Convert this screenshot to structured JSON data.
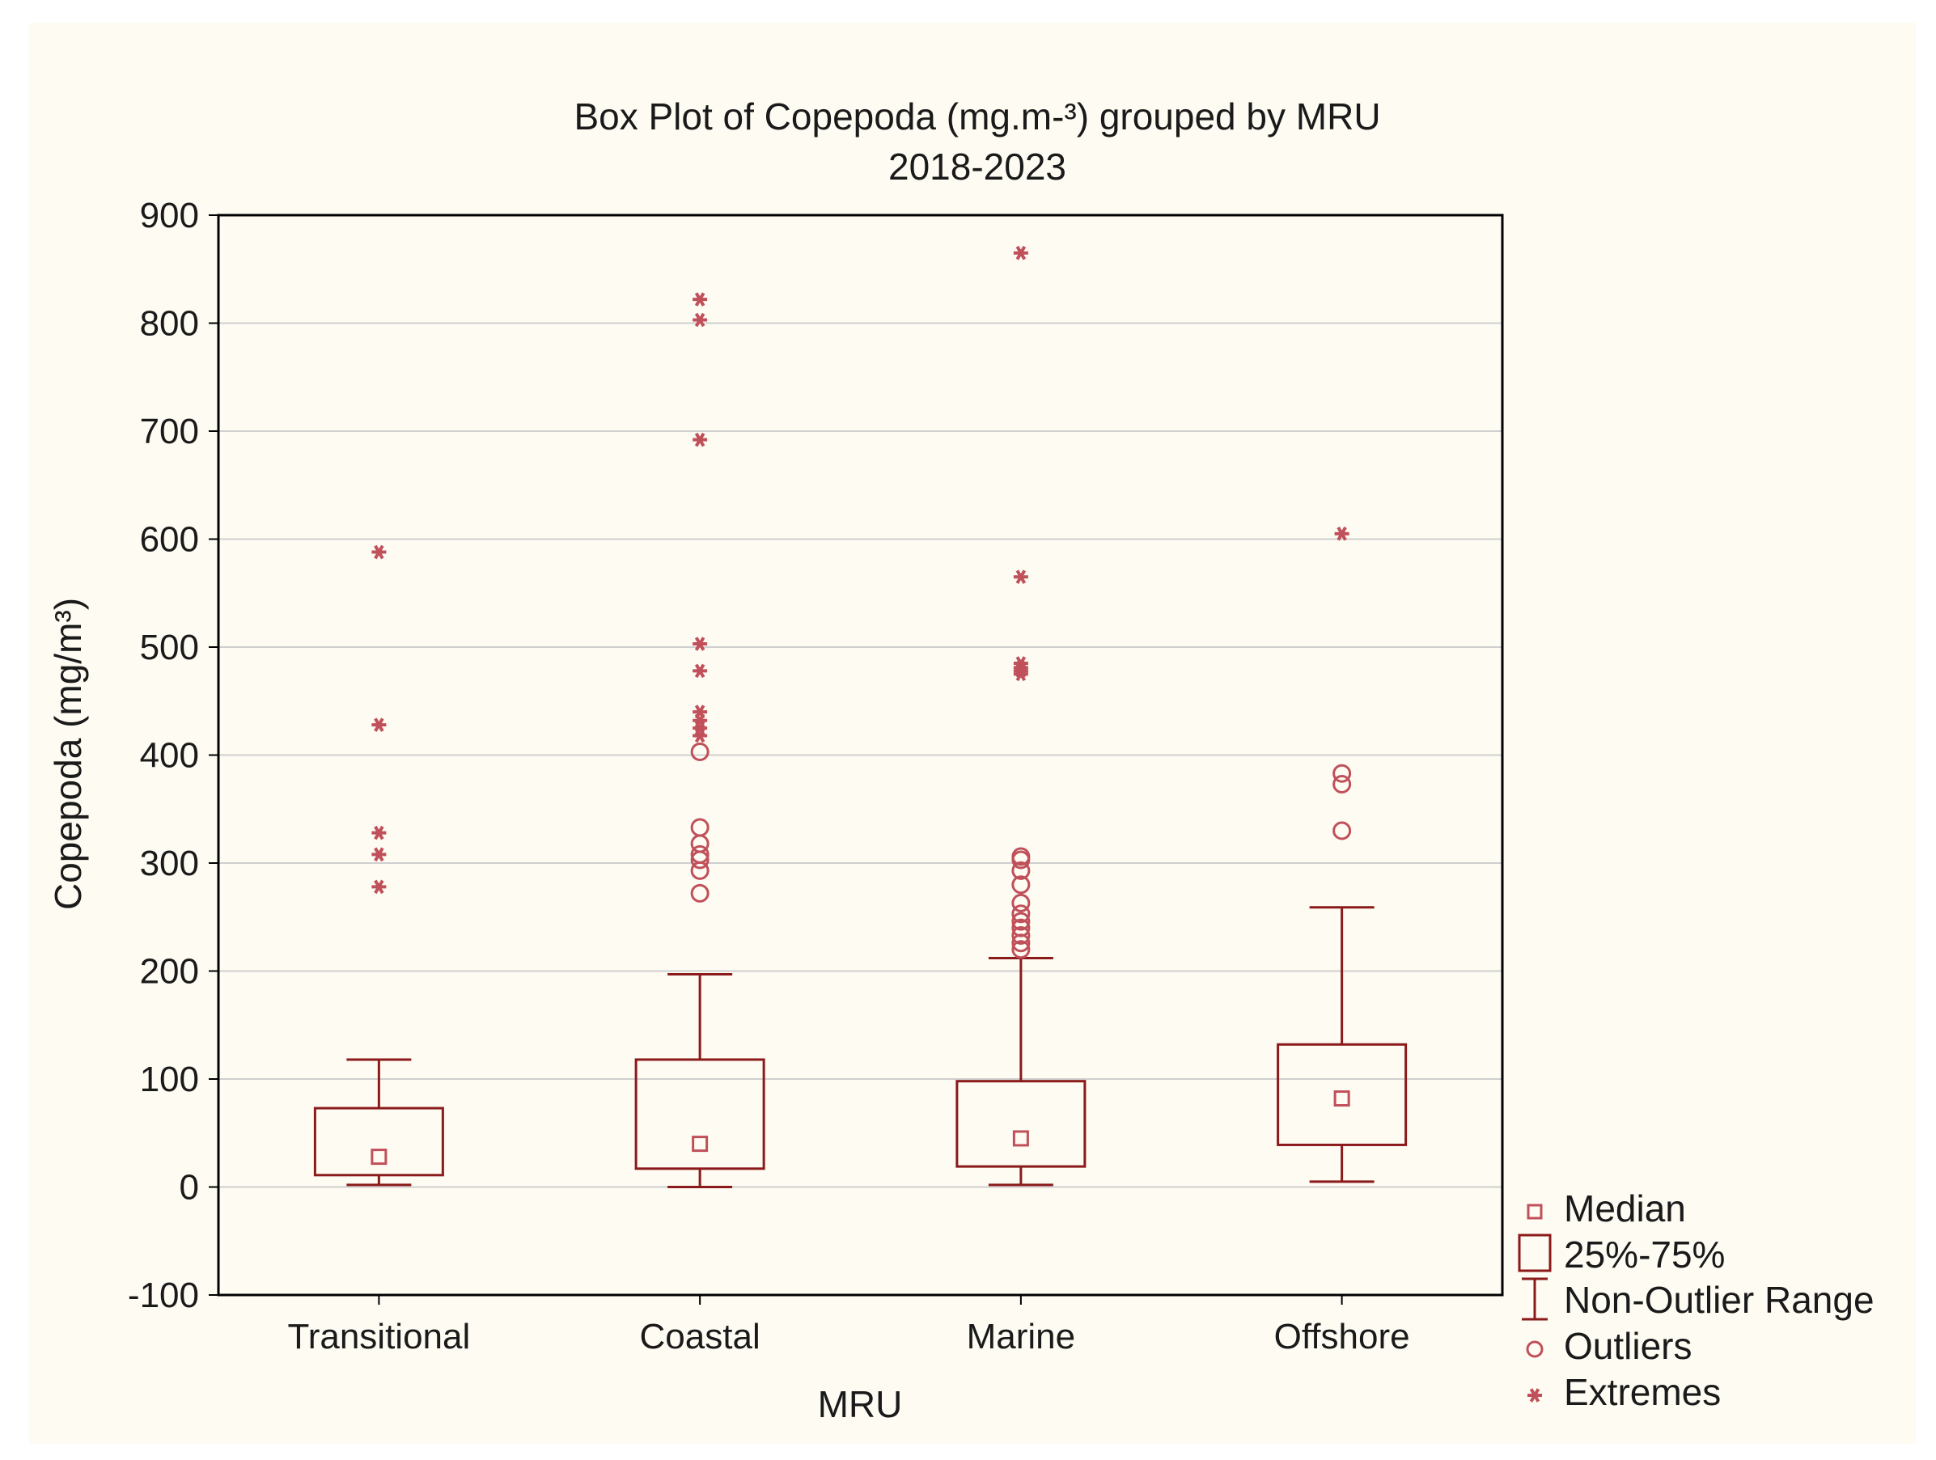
{
  "chart_data": {
    "type": "box",
    "title": "Box Plot of Copepoda (mg.m-³) grouped by MRU",
    "subtitle": "2018-2023",
    "xlabel": "MRU",
    "ylabel": "Copepoda (mg/m³)",
    "ylim": [
      -100,
      900
    ],
    "yticks": [
      -100,
      0,
      100,
      200,
      300,
      400,
      500,
      600,
      700,
      800,
      900
    ],
    "grid": true,
    "legend_position": "right-bottom",
    "legend": [
      "Median",
      "25%-75%",
      "Non-Outlier Range",
      "Outliers",
      "Extremes"
    ],
    "colors": {
      "series": "#8b1a1a",
      "marker": "#c0505a",
      "grid": "#cfcfcf",
      "panel": "#fdfbf2"
    },
    "categories": [
      "Transitional",
      "Coastal",
      "Marine",
      "Offshore"
    ],
    "boxes": [
      {
        "category": "Transitional",
        "median": 28,
        "q1": 11,
        "q3": 73,
        "whisker_low": 2,
        "whisker_high": 118,
        "outliers": [],
        "extremes": [
          588,
          428,
          328,
          308,
          278
        ]
      },
      {
        "category": "Coastal",
        "median": 40,
        "q1": 17,
        "q3": 118,
        "whisker_low": 0,
        "whisker_high": 197,
        "outliers": [
          403,
          333,
          318,
          308,
          303,
          293,
          272
        ],
        "extremes": [
          822,
          803,
          692,
          503,
          478,
          440,
          432,
          425,
          418
        ]
      },
      {
        "category": "Marine",
        "median": 45,
        "q1": 19,
        "q3": 98,
        "whisker_low": 2,
        "whisker_high": 212,
        "outliers": [
          306,
          303,
          293,
          280,
          263,
          253,
          246,
          240,
          233,
          226,
          220
        ],
        "extremes": [
          865,
          565,
          485,
          481,
          478,
          475
        ]
      },
      {
        "category": "Offshore",
        "median": 82,
        "q1": 39,
        "q3": 132,
        "whisker_low": 5,
        "whisker_high": 259,
        "outliers": [
          383,
          373,
          330
        ],
        "extremes": [
          605
        ]
      }
    ]
  }
}
